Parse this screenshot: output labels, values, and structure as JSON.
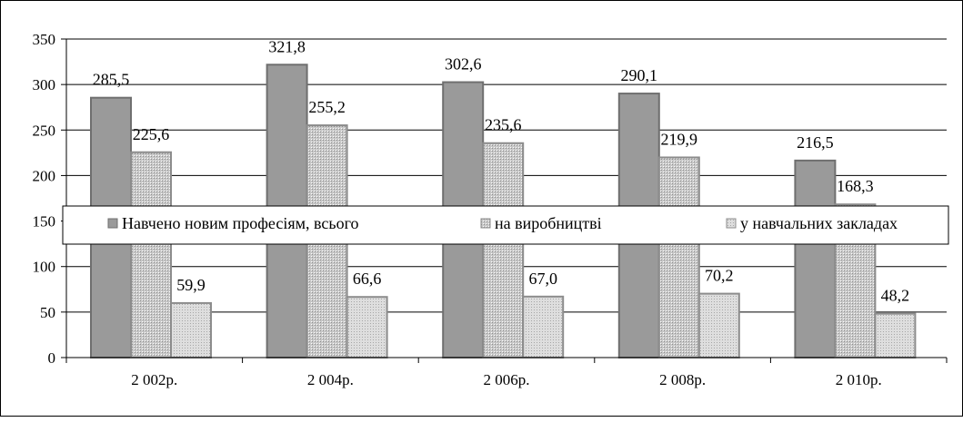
{
  "chart_data": {
    "type": "bar",
    "categories": [
      "2 002р.",
      "2 004р.",
      "2 006р.",
      "2 008р.",
      "2 010р."
    ],
    "series": [
      {
        "name": "Навчено новим професіям, всього",
        "values": [
          285.5,
          321.8,
          302.6,
          290.1,
          216.5
        ],
        "labels": [
          "285,5",
          "321,8",
          "302,6",
          "290,1",
          "216,5"
        ]
      },
      {
        "name": "на виробництві",
        "values": [
          225.6,
          255.2,
          235.6,
          219.9,
          168.3
        ],
        "labels": [
          "225,6",
          "255,2",
          "235,6",
          "219,9",
          "168,3"
        ]
      },
      {
        "name": "у навчальних закладах",
        "values": [
          59.9,
          66.6,
          67.0,
          70.2,
          48.2
        ],
        "labels": [
          "59,9",
          "66,6",
          "67,0",
          "70,2",
          "48,2"
        ]
      }
    ],
    "ylim": [
      0,
      350
    ],
    "yticks": [
      "0",
      "50",
      "100",
      "150",
      "200",
      "250",
      "300",
      "350"
    ],
    "grid": true,
    "legend": "center-overlay",
    "colors": {
      "series_fill": [
        "#9a9a9a",
        "#cfcfcf",
        "#dcdcdc"
      ],
      "series_stroke": [
        "#6f6f6f",
        "#8c8c8c",
        "#8c8c8c"
      ],
      "grid": "#000000",
      "axis": "#000000"
    }
  }
}
